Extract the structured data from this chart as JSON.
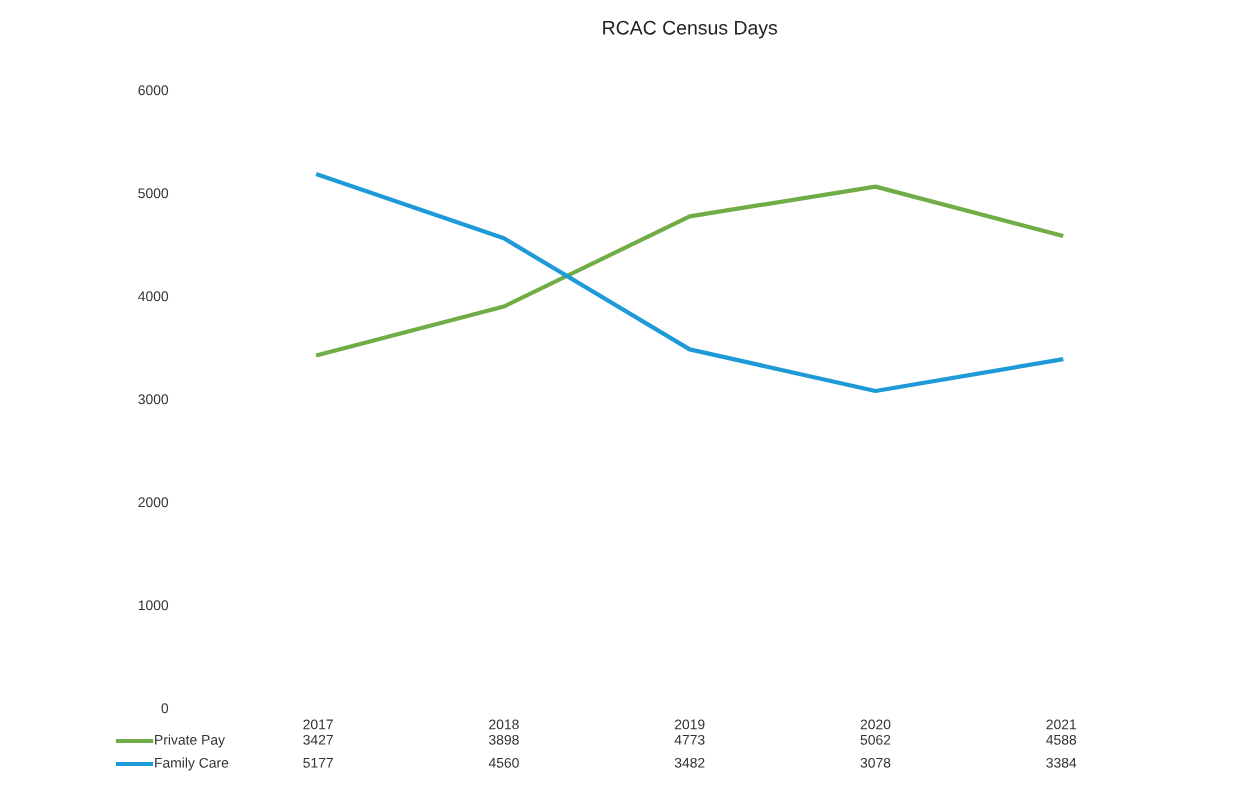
{
  "chart_data": {
    "type": "line",
    "title": "RCAC Census Days",
    "categories": [
      "2017",
      "2018",
      "2019",
      "2020",
      "2021"
    ],
    "series": [
      {
        "name": "Private Pay",
        "color": "#70ad47",
        "values": [
          3427,
          3898,
          4773,
          5062,
          4588
        ]
      },
      {
        "name": "Family Care",
        "color": "#1f9ad8",
        "values": [
          5177,
          4560,
          3482,
          3078,
          3384
        ]
      }
    ],
    "ylim": [
      0,
      6000
    ],
    "yticks": [
      0,
      1000,
      2000,
      3000,
      4000,
      5000,
      6000
    ],
    "grid": false,
    "legend": "bottom",
    "data_labels": true,
    "marker": "none",
    "line_style": "solid"
  }
}
